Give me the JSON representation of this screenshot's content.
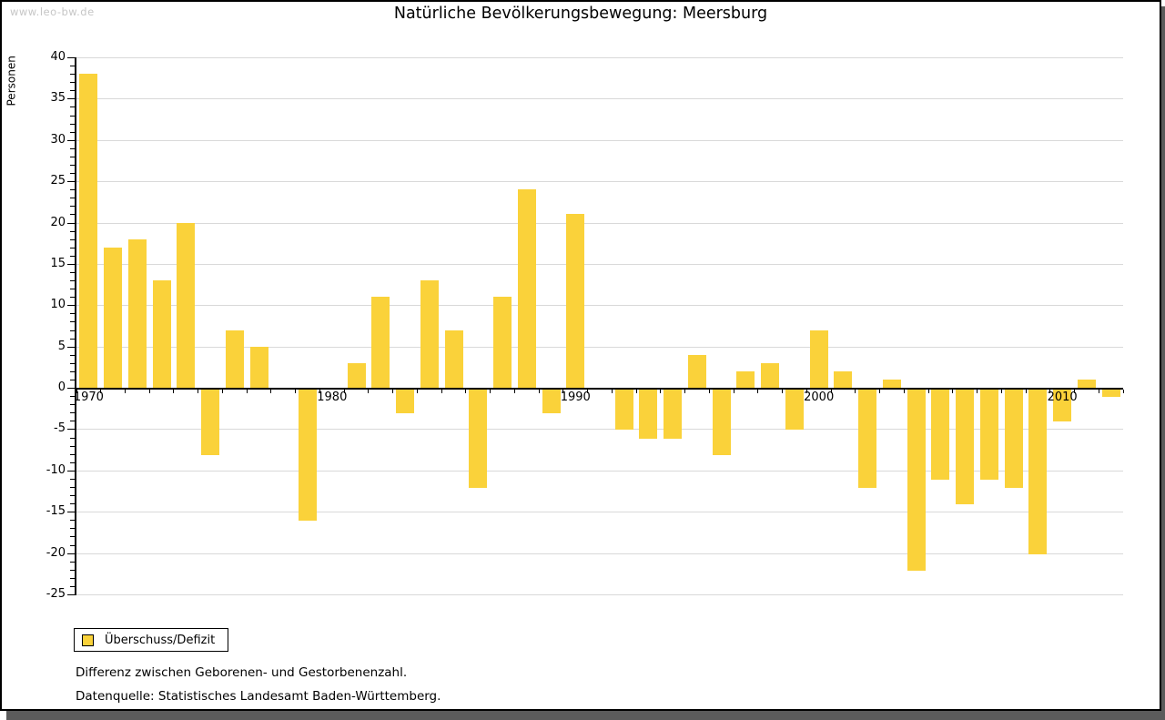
{
  "watermark": "www.leo-bw.de",
  "title": "Natürliche Bevölkerungsbewegung: Meersburg",
  "legend": {
    "label": "Überschuss/Defizit"
  },
  "notes": {
    "definition": "Differenz zwischen Geborenen- und Gestorbenenzahl.",
    "source": "Datenquelle: Statistisches Landesamt Baden-Württemberg."
  },
  "colors": {
    "bar": "#fad23a",
    "gridline": "#d9d9d9",
    "axis": "#000000",
    "watermark": "#c6c6c6",
    "frame_shadow": "#5b5b5b"
  },
  "chart_data": {
    "type": "bar",
    "title": "Natürliche Bevölkerungsbewegung: Meersburg",
    "xlabel": "",
    "ylabel": "Personen",
    "ylim": [
      -25,
      40
    ],
    "y_tick_step": 5,
    "y_minor_tick_step": 1,
    "grid": true,
    "legend_position": "bottom-left",
    "series_name": "Überschuss/Defizit",
    "categories": [
      1970,
      1971,
      1972,
      1973,
      1974,
      1975,
      1976,
      1977,
      1978,
      1979,
      1980,
      1981,
      1982,
      1983,
      1984,
      1985,
      1986,
      1987,
      1988,
      1989,
      1990,
      1991,
      1992,
      1993,
      1994,
      1995,
      1996,
      1997,
      1998,
      1999,
      2000,
      2001,
      2002,
      2003,
      2004,
      2005,
      2006,
      2007,
      2008,
      2009,
      2010,
      2011,
      2012
    ],
    "values": [
      38,
      17,
      18,
      13,
      20,
      -8,
      7,
      5,
      0,
      -16,
      0,
      3,
      11,
      -3,
      13,
      7,
      -12,
      11,
      24,
      -3,
      21,
      0,
      -5,
      -6,
      -6,
      4,
      -8,
      2,
      3,
      -5,
      7,
      2,
      -12,
      1,
      -22,
      -11,
      -14,
      -11,
      -12,
      -20,
      -4,
      1,
      -1
    ],
    "x_labeled_years": [
      1970,
      1980,
      1990,
      2000,
      2010
    ]
  }
}
